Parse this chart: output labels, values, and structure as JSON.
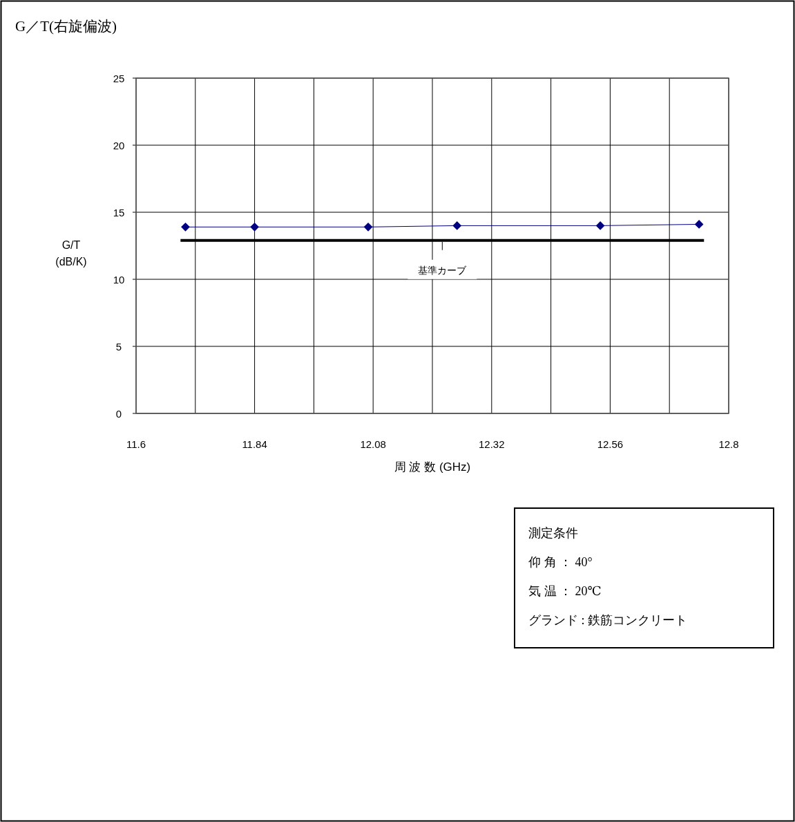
{
  "chart_data": {
    "type": "line",
    "title": "G／T(右旋偏波)",
    "xlabel": "周 波 数 (GHz)",
    "ylabel": "G/T (dB/K)",
    "xlim": [
      11.6,
      12.8
    ],
    "ylim": [
      0,
      25
    ],
    "xticks": [
      11.6,
      {
        "value": 11.72,
        "label": null
      },
      11.84,
      {
        "value": 11.96,
        "label": null
      },
      12.08,
      {
        "value": 12.2,
        "label": null
      },
      12.32,
      {
        "value": 12.44,
        "label": null
      },
      12.56,
      {
        "value": 12.68,
        "label": null
      },
      12.8
    ],
    "yticks": [
      0,
      5,
      10,
      15,
      20,
      25
    ],
    "grid": true,
    "series": [
      {
        "x": [
          11.7,
          11.84,
          12.07,
          12.25,
          12.54,
          12.74
        ],
        "values": [
          13.9,
          13.9,
          13.9,
          14.0,
          14.0,
          14.1
        ],
        "color": "#000080",
        "marker": "diamond"
      },
      {
        "name": "基準カーブ",
        "x": [
          11.69,
          12.75
        ],
        "values": [
          12.9,
          12.9
        ],
        "color": "#000000",
        "marker": "none"
      }
    ],
    "annotations": [
      "測定条件",
      "仰 角 ： 40°",
      "気 温 ： 20℃",
      "グランド : 鉄筋コンクリート"
    ]
  }
}
